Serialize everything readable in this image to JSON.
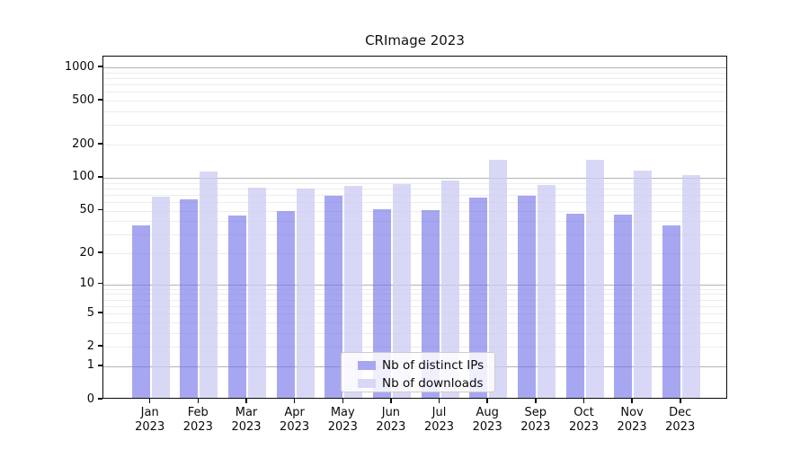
{
  "figure": {
    "title": "CRImage 2023"
  },
  "chart_data": {
    "type": "bar",
    "title": "CRImage 2023",
    "categories": [
      "Jan",
      "Feb",
      "Mar",
      "Apr",
      "May",
      "Jun",
      "Jul",
      "Aug",
      "Sep",
      "Oct",
      "Nov",
      "Dec"
    ],
    "category_year_line": "2023",
    "series": [
      {
        "name": "Nb of distinct IPs",
        "color": "#a6a6f2",
        "fill": "rgba(113,113,232,0.62)",
        "values": [
          35,
          61,
          43,
          48,
          66,
          50,
          49,
          64,
          66,
          45,
          44,
          35
        ]
      },
      {
        "name": "Nb of downloads",
        "color": "#d8d8f6",
        "fill": "rgba(205,205,244,0.78)",
        "values": [
          65,
          109,
          78,
          76,
          81,
          85,
          91,
          140,
          82,
          140,
          112,
          101
        ]
      }
    ],
    "xlabel": "",
    "ylabel": "",
    "y_axis": {
      "scale": "log10(value+1)",
      "ticks": [
        0,
        1,
        2,
        5,
        10,
        20,
        50,
        100,
        200,
        500,
        1000
      ],
      "range": [
        0,
        1255
      ]
    },
    "grid": {
      "major_at": [
        1,
        10,
        100,
        1000
      ],
      "minor_at_mantissas": [
        2,
        3,
        4,
        5,
        6,
        7,
        8,
        9
      ],
      "major_color": "#b3b3b3",
      "minor_color": "#ececec"
    },
    "legend": {
      "position": "inside-bottom-center",
      "entries": [
        "Nb of distinct IPs",
        "Nb of downloads"
      ]
    }
  }
}
